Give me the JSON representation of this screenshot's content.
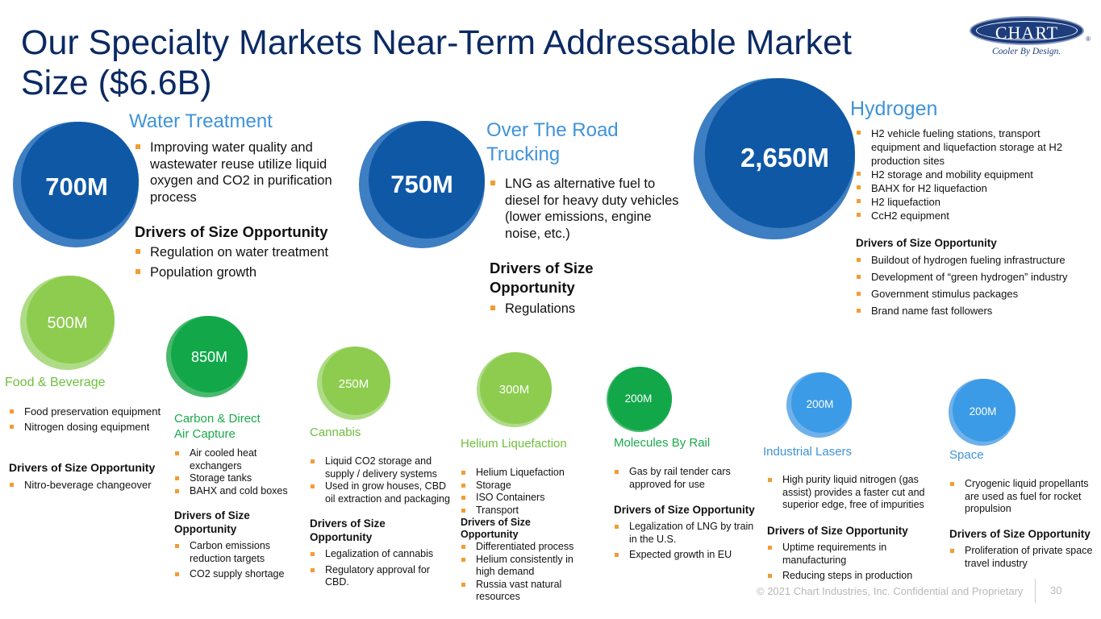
{
  "title": "Our Specialty Markets Near-Term Addressable Market Size ($6.6B)",
  "logo": {
    "name": "CHART",
    "reg": "®",
    "tagline": "Cooler By Design."
  },
  "drivers_label": "Drivers of Size Opportunity",
  "colors": {
    "title": "#0b2a63",
    "blue_bubble": "#1a5ea8",
    "light_blue_bubble": "#3b9be6",
    "green_bubble": "#8dcc4f",
    "dark_green_bubble": "#12a84a",
    "bullet": "#f39c34"
  },
  "markets": {
    "water": {
      "value": "700M",
      "heading": "Water Treatment",
      "bullets": [
        "Improving water quality and wastewater reuse utilize liquid oxygen and CO2 in purification process"
      ],
      "drivers": [
        "Regulation on water treatment",
        "Population growth"
      ]
    },
    "trucking": {
      "value": "750M",
      "heading_line1": "Over The Road",
      "heading_line2": "Trucking",
      "bullets": [
        "LNG as alternative fuel to diesel for heavy duty vehicles (lower emissions, engine noise, etc.)"
      ],
      "drivers_line1": "Drivers of Size",
      "drivers_line2": "Opportunity",
      "drivers": [
        "Regulations"
      ]
    },
    "hydrogen": {
      "value": "2,650M",
      "heading": "Hydrogen",
      "bullets": [
        "H2 vehicle fueling stations, transport equipment and liquefaction storage at H2 production sites",
        "H2 storage and mobility equipment",
        "BAHX for H2 liquefaction",
        "H2 liquefaction",
        "CcH2 equipment"
      ],
      "drivers": [
        "Buildout of hydrogen fueling infrastructure",
        "Development of “green hydrogen” industry",
        "Government stimulus packages",
        "Brand name fast followers"
      ]
    },
    "food": {
      "value": "500M",
      "heading": "Food & Beverage",
      "bullets": [
        "Food preservation equipment",
        "Nitrogen dosing equipment"
      ],
      "drivers": [
        "Nitro-beverage changeover"
      ]
    },
    "carbon": {
      "value": "850M",
      "heading_line1": "Carbon & Direct",
      "heading_line2": "Air Capture",
      "bullets": [
        "Air cooled heat exchangers",
        "Storage tanks",
        "BAHX and cold boxes"
      ],
      "drivers_line1": "Drivers of Size",
      "drivers_line2": "Opportunity",
      "drivers": [
        "Carbon emissions reduction targets",
        "CO2 supply shortage"
      ]
    },
    "cannabis": {
      "value": "250M",
      "heading": "Cannabis",
      "bullets": [
        "Liquid CO2 storage and supply / delivery systems",
        "Used in grow houses, CBD oil extraction and packaging"
      ],
      "drivers_line1": "Drivers of Size",
      "drivers_line2": "Opportunity",
      "drivers": [
        "Legalization of cannabis",
        "Regulatory approval for CBD."
      ]
    },
    "helium": {
      "value": "300M",
      "heading": "Helium Liquefaction",
      "bullets": [
        "Helium Liquefaction",
        "Storage",
        "ISO Containers",
        "Transport"
      ],
      "drivers_line1": "Drivers of Size",
      "drivers_line2": "Opportunity",
      "drivers": [
        "Differentiated process",
        "Helium consistently in high demand",
        "Russia vast natural resources"
      ]
    },
    "rail": {
      "value": "200M",
      "heading": "Molecules By Rail",
      "bullets": [
        "Gas by rail tender cars approved for use"
      ],
      "drivers": [
        "Legalization of LNG by train in the U.S.",
        "Expected growth in EU"
      ]
    },
    "lasers": {
      "value": "200M",
      "heading": "Industrial Lasers",
      "bullets": [
        "High purity liquid nitrogen (gas assist) provides a faster cut and superior edge, free of impurities"
      ],
      "drivers": [
        "Uptime requirements in manufacturing",
        "Reducing steps in production"
      ]
    },
    "space": {
      "value": "200M",
      "heading": "Space",
      "bullets": [
        "Cryogenic liquid propellants are used as fuel for rocket propulsion"
      ],
      "drivers": [
        "Proliferation of private space travel industry"
      ]
    }
  },
  "footer": "© 2021 Chart Industries, Inc. Confidential and Proprietary",
  "page_number": "30"
}
